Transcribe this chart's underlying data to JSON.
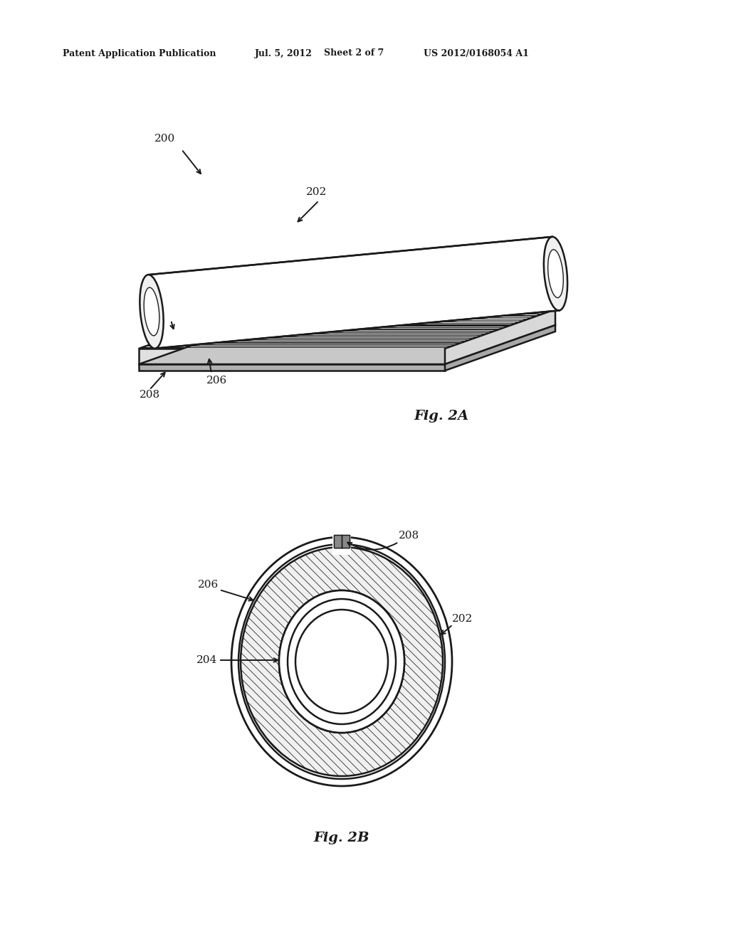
{
  "background_color": "#ffffff",
  "header_text": "Patent Application Publication",
  "header_date": "Jul. 5, 2012",
  "header_sheet": "Sheet 2 of 7",
  "header_patent": "US 2012/0168054 A1",
  "fig2a_label": "Fig. 2A",
  "fig2b_label": "Fig. 2B",
  "label_200": "200",
  "label_202": "202",
  "label_204": "204",
  "label_206": "206",
  "label_208": "208",
  "line_color": "#1a1a1a",
  "lw_main": 1.8,
  "lw_thin": 1.0
}
